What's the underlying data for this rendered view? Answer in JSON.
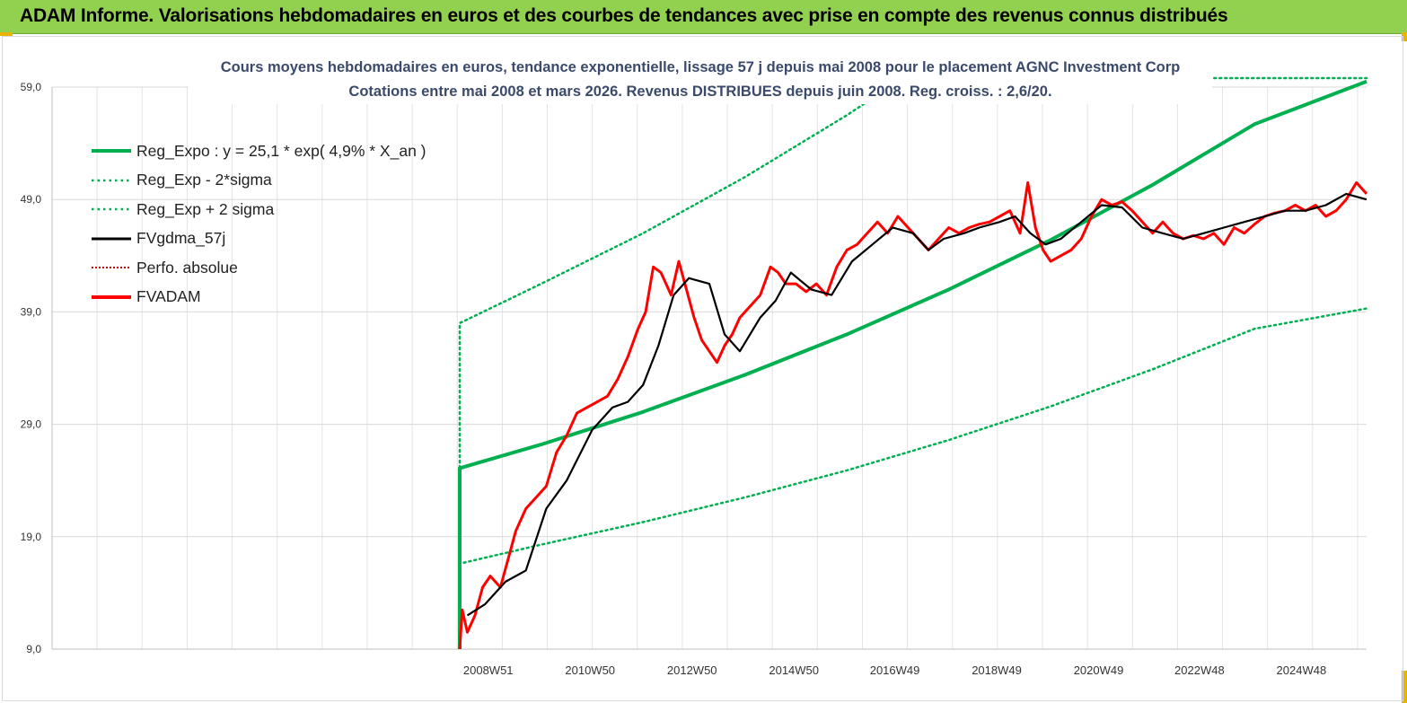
{
  "banner": {
    "title": "ADAM Informe. Valorisations hebdomadaires en euros et des courbes de tendances avec prise en compte des revenus connus distribués"
  },
  "chart_data": {
    "type": "line",
    "title_line1": "Cours moyens hebdomadaires en euros, tendance exponentielle, lissage 57 j depuis mai 2008 pour le placement AGNC Investment Corp",
    "title_line2": "Cotations entre mai 2008 et mars 2026. Revenus DISTRIBUES depuis juin 2008. Reg. croiss. : 2,6/20.",
    "ylim": [
      9,
      59
    ],
    "yticks": [
      "59,0",
      "49,0",
      "39,0",
      "29,0",
      "19,0",
      "9,0"
    ],
    "ytick_values": [
      59,
      49,
      39,
      29,
      19,
      9
    ],
    "xlim": [
      2000.4,
      2026.2
    ],
    "xticks": [
      "2008W51",
      "2010W50",
      "2012W50",
      "2014W50",
      "2016W49",
      "2018W49",
      "2020W49",
      "2022W48",
      "2024W48"
    ],
    "xtick_values": [
      2008.96,
      2010.96,
      2012.96,
      2014.96,
      2016.94,
      2018.94,
      2020.94,
      2022.92,
      2024.92
    ],
    "grid": true,
    "legend_position": "top-left",
    "colors": {
      "reg_expo": "#00b050",
      "sigma": "#00b050",
      "fvgdma": "#000000",
      "perfo": "#c00000",
      "fvadam": "#ff0000"
    },
    "legend": [
      {
        "label": "Reg_Expo : y = 25,1 * exp( 4,9% *  X_an )",
        "style": "solid-thick",
        "color": "#00b050"
      },
      {
        "label": "Reg_Exp - 2*sigma",
        "style": "dotted",
        "color": "#00b050"
      },
      {
        "label": "Reg_Exp + 2 sigma",
        "style": "dotted",
        "color": "#00b050"
      },
      {
        "label": "FVgdma_57j",
        "style": "solid",
        "color": "#000000"
      },
      {
        "label": "Perfo. absolue",
        "style": "dotted-thin",
        "color": "#c00000"
      },
      {
        "label": "FVADAM",
        "style": "solid-thick",
        "color": "#ff0000"
      }
    ],
    "series": [
      {
        "name": "Reg_Expo : y = 25,1 * exp( 4,9% *  X_an )",
        "x": [
          2008.4,
          2010.0,
          2012.0,
          2014.0,
          2016.0,
          2018.0,
          2020.0,
          2022.0,
          2024.0,
          2026.2
        ],
        "y": [
          25.1,
          27.2,
          30.1,
          33.4,
          37.0,
          41.0,
          45.4,
          50.3,
          55.7,
          59.5
        ]
      },
      {
        "name": "Reg_Exp - 2*sigma",
        "x": [
          2008.4,
          2010.0,
          2012.0,
          2014.0,
          2016.0,
          2018.0,
          2020.0,
          2022.0,
          2024.0,
          2026.2
        ],
        "y": [
          16.6,
          18.3,
          20.3,
          22.5,
          24.9,
          27.6,
          30.6,
          33.9,
          37.5,
          39.3
        ]
      },
      {
        "name": "Reg_Exp + 2 sigma",
        "x": [
          2008.4,
          2010.0,
          2012.0,
          2014.0,
          2016.0,
          2018.0,
          2019.0,
          2026.2
        ],
        "y": [
          38.0,
          41.5,
          46.0,
          51.0,
          56.5,
          62.5,
          59.8,
          59.8
        ]
      },
      {
        "name": "FVgdma_57j",
        "x": [
          2008.55,
          2008.9,
          2009.3,
          2009.7,
          2010.1,
          2010.5,
          2011.0,
          2011.4,
          2011.7,
          2012.0,
          2012.3,
          2012.6,
          2012.9,
          2013.3,
          2013.6,
          2013.9,
          2014.3,
          2014.6,
          2014.9,
          2015.3,
          2015.7,
          2016.1,
          2016.5,
          2016.9,
          2017.3,
          2017.6,
          2017.9,
          2018.3,
          2018.6,
          2019.0,
          2019.3,
          2019.6,
          2019.9,
          2020.2,
          2020.6,
          2021.0,
          2021.4,
          2021.8,
          2022.2,
          2022.6,
          2023.0,
          2023.4,
          2023.8,
          2024.2,
          2024.6,
          2025.0,
          2025.4,
          2025.8,
          2026.2
        ],
        "y": [
          12.0,
          13.0,
          15.0,
          16.0,
          21.5,
          24.0,
          28.5,
          30.5,
          31.0,
          32.5,
          36.0,
          40.5,
          42.0,
          41.5,
          37.0,
          35.5,
          38.5,
          40.0,
          42.5,
          41.0,
          40.5,
          43.5,
          45.0,
          46.5,
          46.0,
          44.5,
          45.5,
          46.0,
          46.5,
          47.0,
          47.5,
          46.0,
          45.0,
          45.5,
          47.0,
          48.5,
          48.3,
          46.5,
          46.0,
          45.5,
          46.0,
          46.5,
          47.0,
          47.5,
          48.0,
          48.0,
          48.5,
          49.5,
          49.0
        ]
      },
      {
        "name": "FVADAM",
        "x": [
          2008.4,
          2008.45,
          2008.55,
          2008.7,
          2008.85,
          2009.0,
          2009.2,
          2009.35,
          2009.5,
          2009.7,
          2009.9,
          2010.1,
          2010.3,
          2010.5,
          2010.7,
          2010.9,
          2011.1,
          2011.3,
          2011.5,
          2011.7,
          2011.9,
          2012.05,
          2012.2,
          2012.35,
          2012.45,
          2012.55,
          2012.7,
          2012.85,
          2013.0,
          2013.15,
          2013.3,
          2013.45,
          2013.6,
          2013.75,
          2013.9,
          2014.1,
          2014.3,
          2014.5,
          2014.65,
          2014.8,
          2015.0,
          2015.2,
          2015.4,
          2015.6,
          2015.8,
          2016.0,
          2016.2,
          2016.4,
          2016.6,
          2016.8,
          2017.0,
          2017.2,
          2017.4,
          2017.6,
          2017.8,
          2018.0,
          2018.2,
          2018.4,
          2018.6,
          2018.8,
          2019.0,
          2019.2,
          2019.4,
          2019.55,
          2019.7,
          2019.85,
          2020.0,
          2020.2,
          2020.4,
          2020.6,
          2020.8,
          2021.0,
          2021.2,
          2021.4,
          2021.6,
          2021.8,
          2022.0,
          2022.2,
          2022.4,
          2022.6,
          2022.8,
          2023.0,
          2023.2,
          2023.4,
          2023.6,
          2023.8,
          2024.0,
          2024.2,
          2024.4,
          2024.6,
          2024.8,
          2025.0,
          2025.2,
          2025.4,
          2025.6,
          2025.8,
          2026.0,
          2026.2
        ],
        "y": [
          9.0,
          12.5,
          10.5,
          12.0,
          14.5,
          15.5,
          14.5,
          17.0,
          19.5,
          21.5,
          22.5,
          23.5,
          26.5,
          28.0,
          30.0,
          30.5,
          31.0,
          31.5,
          33.0,
          35.0,
          37.5,
          39.0,
          43.0,
          42.5,
          41.5,
          40.5,
          43.5,
          41.0,
          38.5,
          36.5,
          35.5,
          34.5,
          36.0,
          37.0,
          38.5,
          39.5,
          40.5,
          43.0,
          42.5,
          41.5,
          41.5,
          40.8,
          41.5,
          40.5,
          43.0,
          44.5,
          45.0,
          46.0,
          47.0,
          46.0,
          47.5,
          46.5,
          45.5,
          44.5,
          45.5,
          46.5,
          46.0,
          46.5,
          46.8,
          47.0,
          47.5,
          48.0,
          46.0,
          50.5,
          46.5,
          44.5,
          43.5,
          44.0,
          44.5,
          45.5,
          47.5,
          49.0,
          48.5,
          48.8,
          48.0,
          47.0,
          46.0,
          47.0,
          46.0,
          45.5,
          45.8,
          45.5,
          46.0,
          45.0,
          46.5,
          46.0,
          46.8,
          47.5,
          47.8,
          48.0,
          48.5,
          48.0,
          48.5,
          47.5,
          48.0,
          49.0,
          50.5,
          49.5
        ]
      }
    ]
  }
}
